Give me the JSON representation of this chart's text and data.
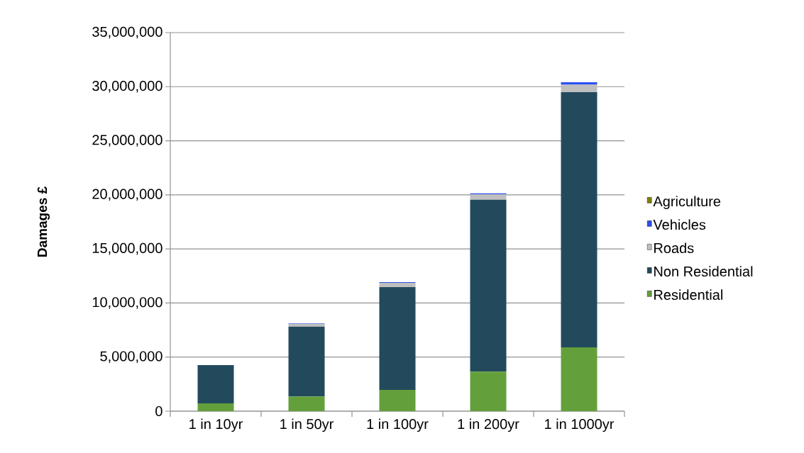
{
  "chart_data": {
    "type": "bar",
    "stacked": true,
    "ylabel": "Damages £",
    "categories": [
      "1 in 10yr",
      "1 in 50yr",
      "1 in 100yr",
      "1 in 200yr",
      "1 in 1000yr"
    ],
    "series": [
      {
        "name": "Residential",
        "color": "#63a03c",
        "values": [
          720000,
          1360000,
          1970000,
          3650000,
          5900000
        ]
      },
      {
        "name": "Non Residential",
        "color": "#234a5c",
        "values": [
          3540000,
          6460000,
          9500000,
          15900000,
          23590000
        ]
      },
      {
        "name": "Roads",
        "color": "#bfbfbf",
        "values": [
          null,
          260000,
          390000,
          500000,
          700000
        ]
      },
      {
        "name": "Vehicles",
        "color": "#2b50ee",
        "values": [
          null,
          50000,
          70000,
          90000,
          220000
        ]
      },
      {
        "name": "Agriculture",
        "color": "#7f7f00",
        "values": [
          0,
          0,
          0,
          0,
          0
        ]
      }
    ],
    "ylim": [
      0,
      35000000
    ],
    "yticks": [
      {
        "value": 0,
        "label": "0"
      },
      {
        "value": 5000000,
        "label": "5,000,000"
      },
      {
        "value": 10000000,
        "label": "10,000,000"
      },
      {
        "value": 15000000,
        "label": "15,000,000"
      },
      {
        "value": 20000000,
        "label": "20,000,000"
      },
      {
        "value": 25000000,
        "label": "25,000,000"
      },
      {
        "value": 30000000,
        "label": "30,000,000"
      },
      {
        "value": 35000000,
        "label": "35,000,000"
      }
    ],
    "grid": "y",
    "legend": "right"
  }
}
